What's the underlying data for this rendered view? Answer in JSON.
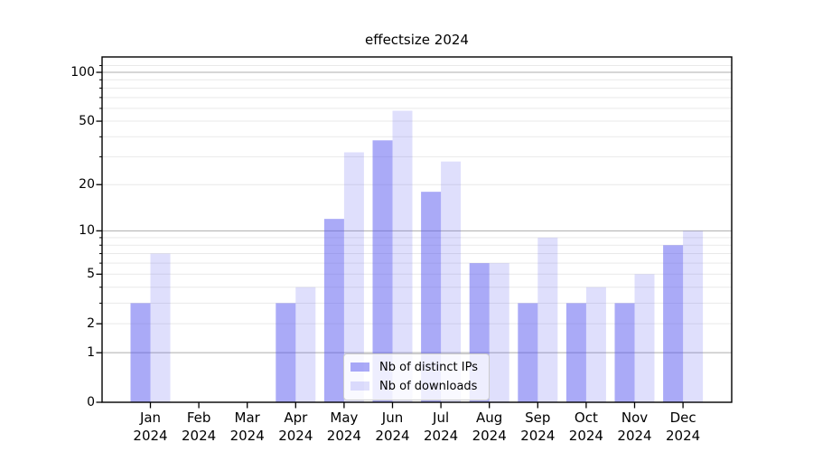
{
  "title": "effectsize 2024",
  "colors": {
    "ips_bar": "rgba(85,85,240,0.50)",
    "downloads_bar": "rgba(85,85,240,0.19)",
    "major_grid": "#adadad",
    "minor_grid": "#e9e9e9",
    "axis": "#000000",
    "legend_border": "#cccccc"
  },
  "chart_data": {
    "type": "bar",
    "title": "effectsize 2024",
    "categories": [
      "Jan 2024",
      "Feb 2024",
      "Mar 2024",
      "Apr 2024",
      "May 2024",
      "Jun 2024",
      "Jul 2024",
      "Aug 2024",
      "Sep 2024",
      "Oct 2024",
      "Nov 2024",
      "Dec 2024"
    ],
    "series": [
      {
        "name": "Nb of distinct IPs",
        "values": [
          3,
          0,
          0,
          3,
          12,
          38,
          18,
          6,
          3,
          3,
          3,
          8
        ]
      },
      {
        "name": "Nb of downloads",
        "values": [
          7,
          0,
          0,
          4,
          32,
          58,
          28,
          6,
          9,
          4,
          5,
          10
        ]
      }
    ],
    "yscale": "log10(1+v)",
    "y_ticks": [
      0,
      1,
      2,
      5,
      10,
      20,
      50,
      100
    ],
    "y_major_gridlines": [
      1,
      10,
      100
    ],
    "y_minor_gridlines": [
      3,
      4,
      6,
      7,
      8,
      9,
      30,
      40,
      60,
      70,
      80,
      90,
      110
    ],
    "ylim": [
      0,
      124
    ],
    "xlabel": "",
    "ylabel": "",
    "grid": true,
    "legend_position": "lower center"
  },
  "legend": {
    "items": [
      {
        "label": "Nb of distinct IPs"
      },
      {
        "label": "Nb of downloads"
      }
    ]
  }
}
